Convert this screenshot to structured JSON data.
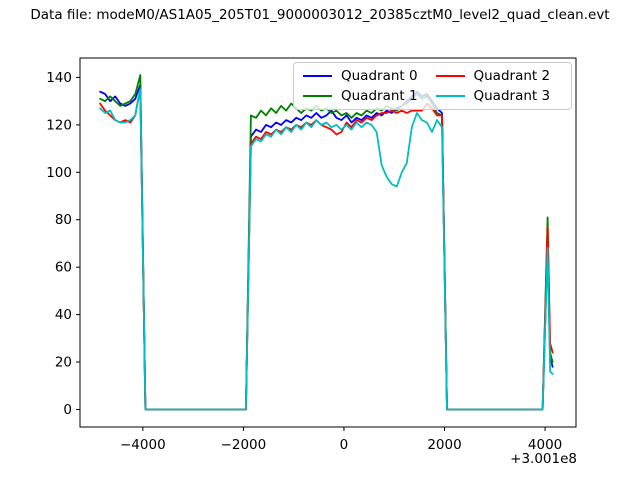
{
  "chart_data": {
    "type": "line",
    "title": "Data file: modeM0/AS1A05_205T01_9000003012_20385cztM0_level2_quad_clean.evt",
    "xlabel": "",
    "ylabel": "",
    "offset_text": "+3.001e8",
    "grid": false,
    "legend_position": "upper right",
    "legend_columns": 2,
    "xlim": [
      -5250,
      4615
    ],
    "ylim": [
      -7.4,
      148.2
    ],
    "x_ticks": [
      {
        "value": -4000,
        "label": "−4000"
      },
      {
        "value": -2000,
        "label": "−2000"
      },
      {
        "value": 0,
        "label": "0"
      },
      {
        "value": 2000,
        "label": "2000"
      },
      {
        "value": 4000,
        "label": "4000"
      }
    ],
    "y_ticks": [
      {
        "value": 0,
        "label": "0"
      },
      {
        "value": 20,
        "label": "20"
      },
      {
        "value": 40,
        "label": "40"
      },
      {
        "value": 60,
        "label": "60"
      },
      {
        "value": 80,
        "label": "80"
      },
      {
        "value": 100,
        "label": "100"
      },
      {
        "value": 120,
        "label": "120"
      },
      {
        "value": 140,
        "label": "140"
      }
    ],
    "x": [
      -4850,
      -4750,
      -4650,
      -4550,
      -4450,
      -4350,
      -4250,
      -4150,
      -4100,
      -4050,
      -3950,
      -3400,
      -2800,
      -2300,
      -1950,
      -1850,
      -1750,
      -1650,
      -1550,
      -1450,
      -1350,
      -1250,
      -1150,
      -1050,
      -950,
      -850,
      -750,
      -650,
      -550,
      -450,
      -350,
      -250,
      -150,
      -50,
      50,
      150,
      250,
      350,
      450,
      550,
      650,
      750,
      850,
      950,
      1050,
      1150,
      1250,
      1350,
      1450,
      1550,
      1650,
      1750,
      1850,
      1950,
      2050,
      2600,
      3200,
      3950,
      4050,
      4100,
      4150
    ],
    "series": [
      {
        "name": "Quadrant 0",
        "color": "#0000ff",
        "values": [
          134,
          133,
          130,
          132,
          129,
          128,
          129,
          131,
          134,
          137,
          0,
          0,
          0,
          0,
          0,
          115,
          118,
          117,
          120,
          119,
          121,
          120,
          122,
          121,
          123,
          122,
          124,
          123,
          125,
          123,
          124,
          126,
          123,
          122,
          124,
          121,
          123,
          122,
          124,
          123,
          125,
          124,
          126,
          125,
          127,
          128,
          130,
          132,
          134,
          132,
          133,
          130,
          127,
          125,
          0,
          0,
          0,
          0,
          70,
          22,
          18
        ]
      },
      {
        "name": "Quadrant 1",
        "color": "#008000",
        "values": [
          131,
          130,
          132,
          130,
          128,
          129,
          130,
          133,
          137,
          141,
          0,
          0,
          0,
          0,
          0,
          124,
          123,
          126,
          124,
          127,
          125,
          128,
          126,
          129,
          127,
          125,
          127,
          126,
          128,
          126,
          127,
          125,
          126,
          124,
          125,
          123,
          125,
          124,
          126,
          125,
          127,
          126,
          128,
          127,
          126,
          128,
          129,
          131,
          133,
          131,
          132,
          129,
          125,
          124,
          0,
          0,
          0,
          0,
          81,
          24,
          20
        ]
      },
      {
        "name": "Quadrant 2",
        "color": "#ff0000",
        "values": [
          129,
          126,
          124,
          122,
          121,
          122,
          121,
          124,
          130,
          134,
          0,
          0,
          0,
          0,
          0,
          112,
          115,
          114,
          117,
          116,
          118,
          117,
          119,
          118,
          120,
          119,
          121,
          120,
          122,
          120,
          119,
          118,
          116,
          117,
          121,
          119,
          122,
          121,
          123,
          122,
          124,
          125,
          125,
          126,
          125,
          126,
          125,
          126,
          126,
          126,
          129,
          127,
          124,
          124,
          0,
          0,
          0,
          0,
          77,
          28,
          24
        ]
      },
      {
        "name": "Quadrant 3",
        "color": "#00bfbf",
        "values": [
          127,
          125,
          126,
          122,
          121,
          121,
          122,
          124,
          130,
          135,
          0,
          0,
          0,
          0,
          0,
          111,
          114,
          113,
          116,
          115,
          118,
          116,
          119,
          117,
          120,
          118,
          121,
          119,
          122,
          120,
          121,
          119,
          120,
          118,
          120,
          118,
          121,
          119,
          121,
          120,
          117,
          103,
          98,
          95,
          94,
          100,
          104,
          119,
          125,
          122,
          121,
          117,
          122,
          119,
          0,
          0,
          0,
          0,
          68,
          16,
          15
        ]
      }
    ]
  }
}
